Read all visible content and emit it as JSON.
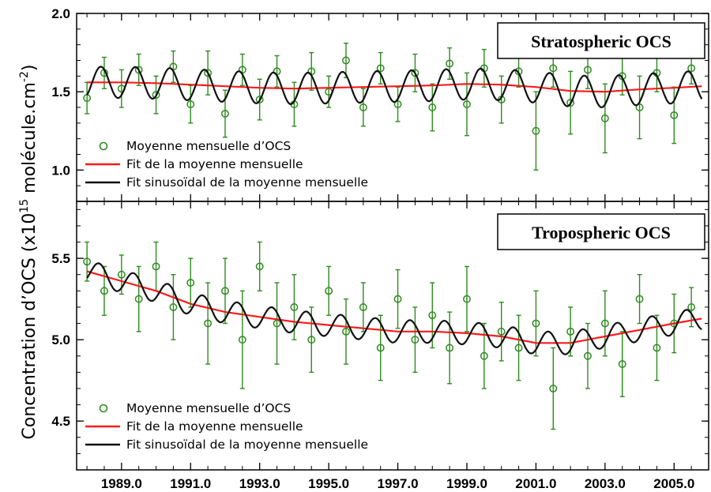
{
  "y_axis_label": {
    "prefix": "Concentration d’OCS (x10",
    "exponent": "15",
    "unit": " molécule.cm",
    "unit_exponent": "-2",
    "suffix": ")"
  },
  "legend_labels": {
    "points": "Moyenne mensuelle d’OCS",
    "fit": "Fit de la moyenne mensuelle",
    "sinusoidal_fit": "Fit sinusoïdal de la moyenne mensuelle"
  },
  "colors": {
    "points": "#2e8b1f",
    "fit": "#ff1a1a",
    "sinusoidal_fit": "#111111"
  },
  "chart_data": [
    {
      "type": "scatter",
      "title": "Stratospheric OCS",
      "xlim": [
        1987.7,
        2006.0
      ],
      "ylim": [
        0.8,
        2.0
      ],
      "yticks": [
        1.0,
        1.5,
        2.0
      ],
      "ytick_labels": [
        "1.0",
        "1.5",
        "2.0"
      ],
      "legend_position": "lower-left",
      "series": [
        {
          "name": "Moyenne mensuelle d’OCS",
          "type": "scatter-errorbar",
          "x": [
            1988.0,
            1988.5,
            1989.0,
            1989.5,
            1990.0,
            1990.5,
            1991.0,
            1991.5,
            1992.0,
            1992.5,
            1993.0,
            1993.5,
            1994.0,
            1994.5,
            1995.0,
            1995.5,
            1996.0,
            1996.5,
            1997.0,
            1997.5,
            1998.0,
            1998.5,
            1999.0,
            1999.5,
            2000.0,
            2000.5,
            2001.0,
            2001.5,
            2002.0,
            2002.5,
            2003.0,
            2003.5,
            2004.0,
            2004.5,
            2005.0,
            2005.5
          ],
          "y": [
            1.46,
            1.62,
            1.52,
            1.64,
            1.48,
            1.66,
            1.42,
            1.62,
            1.36,
            1.64,
            1.45,
            1.63,
            1.42,
            1.63,
            1.5,
            1.7,
            1.4,
            1.65,
            1.42,
            1.62,
            1.4,
            1.68,
            1.42,
            1.65,
            1.45,
            1.63,
            1.25,
            1.65,
            1.43,
            1.64,
            1.33,
            1.6,
            1.4,
            1.62,
            1.35,
            1.65
          ],
          "err": [
            0.1,
            0.1,
            0.12,
            0.1,
            0.12,
            0.1,
            0.12,
            0.14,
            0.15,
            0.1,
            0.13,
            0.1,
            0.14,
            0.12,
            0.1,
            0.11,
            0.12,
            0.1,
            0.11,
            0.12,
            0.15,
            0.1,
            0.2,
            0.12,
            0.15,
            0.1,
            0.25,
            0.12,
            0.2,
            0.12,
            0.22,
            0.12,
            0.2,
            0.12,
            0.18,
            0.1
          ]
        },
        {
          "name": "Fit de la moyenne mensuelle",
          "type": "line",
          "x": [
            1988.0,
            1989.0,
            1990.0,
            1991.0,
            1992.0,
            1993.0,
            1994.0,
            1995.0,
            1996.0,
            1997.0,
            1998.0,
            1999.0,
            2000.0,
            2001.0,
            2002.0,
            2003.0,
            2004.0,
            2005.0,
            2005.8
          ],
          "y": [
            1.56,
            1.56,
            1.555,
            1.545,
            1.535,
            1.525,
            1.52,
            1.525,
            1.53,
            1.535,
            1.54,
            1.55,
            1.545,
            1.53,
            1.505,
            1.5,
            1.515,
            1.525,
            1.535
          ]
        },
        {
          "name": "Fit sinusoïdal de la moyenne mensuelle",
          "type": "line",
          "amplitude": 0.1,
          "period_years": 1.0,
          "phase": 1988.15,
          "x_range": [
            1988.0,
            2005.8
          ]
        }
      ]
    },
    {
      "type": "scatter",
      "title": "Tropospheric OCS",
      "xlim": [
        1987.7,
        2006.0
      ],
      "ylim": [
        4.2,
        5.85
      ],
      "yticks": [
        4.5,
        5.0,
        5.5
      ],
      "ytick_labels": [
        "4.5",
        "5.0",
        "5.5"
      ],
      "xticks": [
        1989,
        1991,
        1993,
        1995,
        1997,
        1999,
        2001,
        2003,
        2005
      ],
      "xtick_labels": [
        "1989.0",
        "1991.0",
        "1993.0",
        "1995.0",
        "1997.0",
        "1999.0",
        "2001.0",
        "2003.0",
        "2005.0"
      ],
      "legend_position": "lower-left",
      "series": [
        {
          "name": "Moyenne mensuelle d’OCS",
          "type": "scatter-errorbar",
          "x": [
            1988.0,
            1988.5,
            1989.0,
            1989.5,
            1990.0,
            1990.5,
            1991.0,
            1991.5,
            1992.0,
            1992.5,
            1993.0,
            1993.5,
            1994.0,
            1994.5,
            1995.0,
            1995.5,
            1996.0,
            1996.5,
            1997.0,
            1997.5,
            1998.0,
            1998.5,
            1999.0,
            1999.5,
            2000.0,
            2000.5,
            2001.0,
            2001.5,
            2002.0,
            2002.5,
            2003.0,
            2003.5,
            2004.0,
            2004.5,
            2005.0,
            2005.5
          ],
          "y": [
            5.48,
            5.3,
            5.4,
            5.25,
            5.45,
            5.2,
            5.35,
            5.1,
            5.3,
            5.0,
            5.45,
            5.1,
            5.2,
            5.0,
            5.3,
            5.05,
            5.2,
            4.95,
            5.25,
            5.0,
            5.15,
            4.95,
            5.25,
            4.9,
            5.05,
            4.95,
            5.1,
            4.7,
            5.05,
            4.9,
            5.1,
            4.85,
            5.25,
            4.95,
            5.1,
            5.2
          ],
          "err": [
            0.12,
            0.15,
            0.12,
            0.2,
            0.15,
            0.2,
            0.15,
            0.25,
            0.2,
            0.3,
            0.15,
            0.25,
            0.2,
            0.2,
            0.15,
            0.2,
            0.15,
            0.2,
            0.18,
            0.2,
            0.2,
            0.22,
            0.2,
            0.2,
            0.18,
            0.2,
            0.2,
            0.25,
            0.15,
            0.2,
            0.2,
            0.2,
            0.15,
            0.2,
            0.18,
            0.12
          ]
        },
        {
          "name": "Fit de la moyenne mensuelle",
          "type": "line",
          "x": [
            1988.0,
            1989.0,
            1990.0,
            1991.0,
            1992.0,
            1993.0,
            1994.0,
            1995.0,
            1996.0,
            1997.0,
            1998.0,
            1999.0,
            2000.0,
            2001.0,
            2002.0,
            2003.0,
            2004.0,
            2005.0,
            2005.8
          ],
          "y": [
            5.42,
            5.36,
            5.3,
            5.22,
            5.17,
            5.14,
            5.11,
            5.09,
            5.07,
            5.05,
            5.05,
            5.04,
            5.02,
            4.98,
            4.98,
            5.02,
            5.06,
            5.1,
            5.13
          ]
        },
        {
          "name": "Fit sinusoïdal de la moyenne mensuelle",
          "type": "line",
          "amplitude": 0.07,
          "period_years": 1.0,
          "phase": 1988.1,
          "x_range": [
            1988.0,
            2005.8
          ]
        }
      ]
    }
  ]
}
